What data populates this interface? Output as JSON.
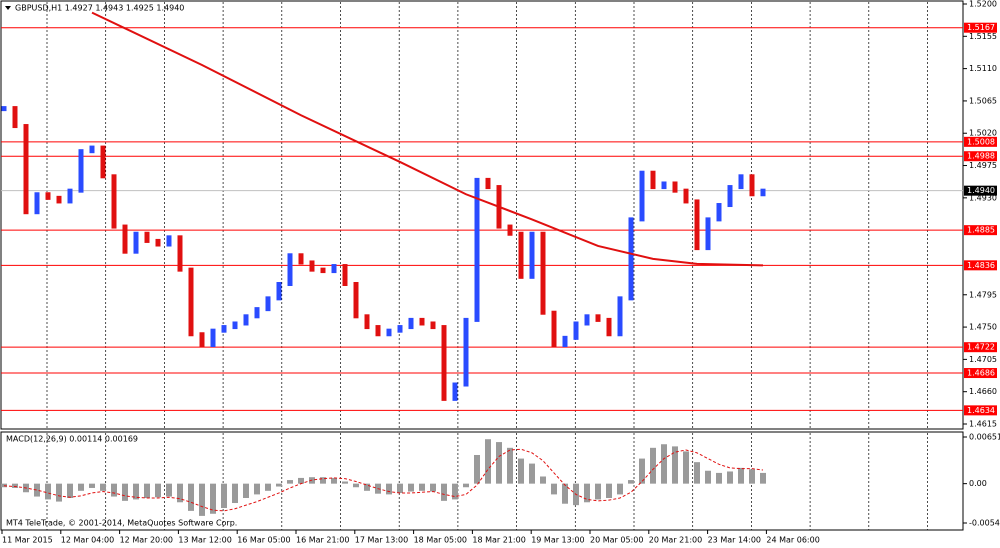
{
  "chart_data": {
    "type": "candlestick",
    "header": "GBPUSD,H1  1.4927 1.4943 1.4925 1.4940",
    "watermark": "MT4 TeleTrade, © 2001-2014, MetaQuotes Software Corp.",
    "xlim": [
      0,
      69
    ],
    "ylim": [
      1.4615,
      1.52
    ],
    "yticks": [
      {
        "value": 1.52,
        "label": "1.5200"
      },
      {
        "value": 1.5155,
        "label": "1.5155"
      },
      {
        "value": 1.511,
        "label": "1.5110"
      },
      {
        "value": 1.5065,
        "label": "1.5065"
      },
      {
        "value": 1.502,
        "label": "1.5020"
      },
      {
        "value": 1.4975,
        "label": "1.4975"
      },
      {
        "value": 1.493,
        "label": "1.4930"
      },
      {
        "value": 1.4795,
        "label": "1.4795"
      },
      {
        "value": 1.475,
        "label": "1.4750"
      },
      {
        "value": 1.4705,
        "label": "1.4705"
      },
      {
        "value": 1.466,
        "label": "1.4660"
      },
      {
        "value": 1.4615,
        "label": "1.4615"
      }
    ],
    "x_labels": [
      "11 Mar 2015",
      "12 Mar 04:00",
      "12 Mar 20:00",
      "13 Mar 12:00",
      "16 Mar 05:00",
      "16 Mar 21:00",
      "17 Mar 13:00",
      "18 Mar 05:00",
      "18 Mar 21:00",
      "19 Mar 13:00",
      "20 Mar 05:00",
      "20 Mar 21:00",
      "23 Mar 14:00",
      "24 Mar 06:00"
    ],
    "up_color": "#2a4bff",
    "down_color": "#e01010",
    "close": [
      1.5055,
      1.503,
      1.491,
      1.4935,
      1.493,
      1.4925,
      1.494,
      1.4995,
      1.5,
      1.496,
      1.489,
      1.4855,
      1.488,
      1.487,
      1.4865,
      1.4875,
      1.483,
      1.474,
      1.4725,
      1.4745,
      1.475,
      1.4755,
      1.4765,
      1.4775,
      1.479,
      1.481,
      1.485,
      1.484,
      1.483,
      1.4828,
      1.4835,
      1.481,
      1.4765,
      1.475,
      1.474,
      1.4745,
      1.475,
      1.476,
      1.4755,
      1.475,
      1.465,
      1.467,
      1.476,
      1.4955,
      1.4945,
      1.489,
      1.488,
      1.482,
      1.488,
      1.477,
      1.4725,
      1.4735,
      1.4755,
      1.4765,
      1.476,
      1.474,
      1.479,
      1.49,
      1.4965,
      1.4945,
      1.495,
      1.494,
      1.4925,
      1.486,
      1.49,
      1.492,
      1.4945,
      1.496,
      1.4935,
      1.494
    ],
    "moving_average": {
      "color": "#e01010",
      "x": [
        8,
        18,
        27,
        36,
        42,
        48,
        54,
        59,
        63,
        69
      ],
      "values": [
        1.5188,
        1.5115,
        1.5045,
        1.498,
        1.4935,
        1.49,
        1.4863,
        1.4845,
        1.4838,
        1.4836
      ]
    },
    "levels": {
      "color": "#ff0000",
      "values": [
        1.5167,
        1.5008,
        1.4988,
        1.4885,
        1.4836,
        1.4722,
        1.4686,
        1.4634
      ]
    },
    "current_price": {
      "value": 1.494,
      "label": "1.4940"
    },
    "macd": {
      "label": "MACD(12,26,9) 0.00114 0.00169",
      "y2lim": [
        -0.00549,
        0.00651
      ],
      "y2ticks": [
        0.00651,
        {
          "value": 0,
          "label": "0.00"
        },
        -0.00549
      ],
      "histogram_color": "#9a9a9a",
      "signal_color": "#e01010",
      "histogram": [
        -0.0005,
        -0.0006,
        -0.0012,
        -0.0018,
        -0.0022,
        -0.0025,
        -0.002,
        -0.001,
        -0.0006,
        -0.001,
        -0.0018,
        -0.0024,
        -0.0022,
        -0.002,
        -0.0019,
        -0.0018,
        -0.0026,
        -0.0038,
        -0.0045,
        -0.0042,
        -0.0034,
        -0.0027,
        -0.002,
        -0.0015,
        -0.001,
        -0.0004,
        0.0005,
        0.0008,
        0.0009,
        0.0009,
        0.0008,
        0.0003,
        -0.0005,
        -0.001,
        -0.0014,
        -0.0015,
        -0.0013,
        -0.0011,
        -0.001,
        -0.0011,
        -0.0024,
        -0.0022,
        -0.0005,
        0.004,
        0.0062,
        0.0058,
        0.005,
        0.0035,
        0.0028,
        0.001,
        -0.0015,
        -0.0028,
        -0.003,
        -0.0026,
        -0.0022,
        -0.002,
        -0.0015,
        0.0005,
        0.0035,
        0.005,
        0.0055,
        0.0052,
        0.0045,
        0.003,
        0.0018,
        0.0015,
        0.0017,
        0.0022,
        0.002,
        0.0015
      ],
      "signal": [
        -0.0003,
        -0.0004,
        -0.0006,
        -0.0009,
        -0.0013,
        -0.0017,
        -0.0019,
        -0.0017,
        -0.0013,
        -0.0011,
        -0.0013,
        -0.0017,
        -0.0019,
        -0.002,
        -0.002,
        -0.0019,
        -0.0021,
        -0.0026,
        -0.0032,
        -0.0037,
        -0.0038,
        -0.0035,
        -0.003,
        -0.0025,
        -0.0019,
        -0.0013,
        -0.0006,
        0,
        0.0005,
        0.0007,
        0.0008,
        0.0007,
        0.0003,
        -0.0002,
        -0.0007,
        -0.0011,
        -0.0013,
        -0.0013,
        -0.0012,
        -0.0011,
        -0.0015,
        -0.0018,
        -0.0015,
        -0.0002,
        0.002,
        0.0038,
        0.0047,
        0.0048,
        0.0043,
        0.0032,
        0.0015,
        -0.0002,
        -0.0015,
        -0.0022,
        -0.0024,
        -0.0023,
        -0.002,
        -0.0012,
        0.0003,
        0.002,
        0.0035,
        0.0044,
        0.0047,
        0.0043,
        0.0035,
        0.0027,
        0.0022,
        0.0021,
        0.0021,
        0.0019
      ]
    }
  }
}
